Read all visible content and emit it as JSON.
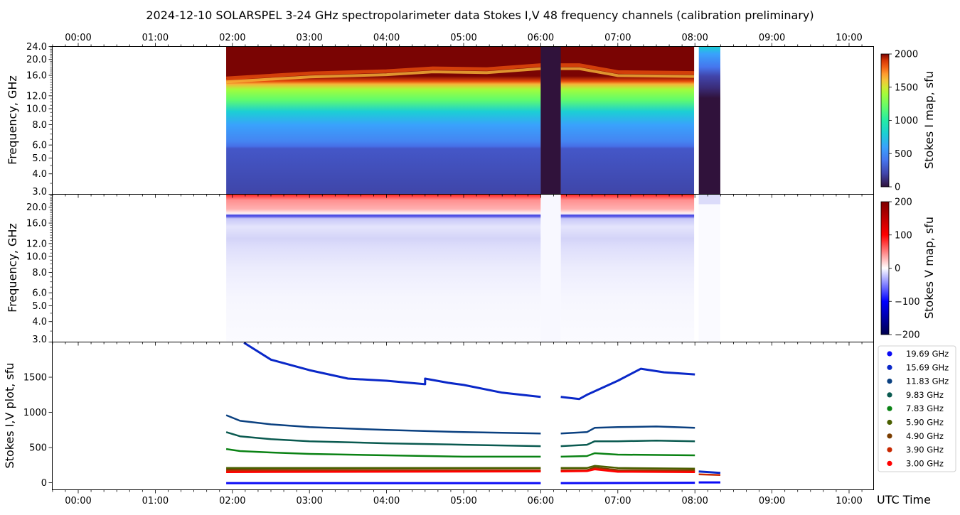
{
  "title": "2024-12-10  SOLARSPEL  3-24 GHz spectropolarimeter data   Stokes I,V   48 frequency channels   (calibration preliminary)",
  "x_axis": {
    "label": "UTC Time",
    "range_hours": [
      -0.33,
      10.33
    ],
    "ticks": [
      {
        "h": 0,
        "label": "00:00"
      },
      {
        "h": 1,
        "label": "01:00"
      },
      {
        "h": 2,
        "label": "02:00"
      },
      {
        "h": 3,
        "label": "03:00"
      },
      {
        "h": 4,
        "label": "04:00"
      },
      {
        "h": 5,
        "label": "05:00"
      },
      {
        "h": 6,
        "label": "06:00"
      },
      {
        "h": 7,
        "label": "07:00"
      },
      {
        "h": 8,
        "label": "08:00"
      },
      {
        "h": 9,
        "label": "09:00"
      },
      {
        "h": 10,
        "label": "10:00"
      }
    ]
  },
  "chart_data": [
    {
      "type": "heatmap",
      "name": "stokes-i-map",
      "ylabel": "Frequency, GHz",
      "yscale": "log",
      "ylim": [
        3.0,
        24.0
      ],
      "yticks_panel1": [
        "24.0",
        "20.0",
        "16.0",
        "12.0",
        "10.0",
        "8.0",
        "6.0",
        "5.0",
        "4.0",
        "3.0"
      ],
      "ytick_values_panel1": [
        24,
        20,
        16,
        12,
        10,
        8,
        6,
        5,
        4,
        3
      ],
      "colorbar": {
        "label": "Stokes I map, sfu",
        "range": [
          0,
          2000
        ],
        "ticks": [
          "0",
          "500",
          "1000",
          "1500",
          "2000"
        ],
        "tick_values": [
          0,
          500,
          1000,
          1500,
          2000
        ],
        "colormap": "turbo"
      },
      "data_segments_hours": [
        [
          1.92,
          6.0
        ],
        [
          6.0,
          6.26
        ],
        [
          6.26,
          7.99
        ],
        [
          8.05,
          8.33
        ]
      ],
      "segment_notes": [
        "quiet-sun spectrum",
        "gap / low values",
        "quiet-sun spectrum",
        "low values"
      ],
      "saturation_boundary_ghz": [
        {
          "h": 1.92,
          "f": 15.2
        },
        {
          "h": 3.0,
          "f": 16.3
        },
        {
          "h": 4.0,
          "f": 16.8
        },
        {
          "h": 4.6,
          "f": 17.5
        },
        {
          "h": 5.3,
          "f": 17.3
        },
        {
          "h": 6.0,
          "f": 18.3
        },
        {
          "h": 6.5,
          "f": 18.3
        },
        {
          "h": 7.0,
          "f": 16.6
        },
        {
          "h": 8.0,
          "f": 16.4
        }
      ]
    },
    {
      "type": "heatmap",
      "name": "stokes-v-map",
      "ylabel": "Frequency, GHz",
      "yscale": "log",
      "ylim": [
        3.0,
        24.0
      ],
      "yticks": [
        "20.0",
        "16.0",
        "12.0",
        "10.0",
        "8.0",
        "6.0",
        "5.0",
        "4.0",
        "3.0"
      ],
      "ytick_values": [
        20,
        16,
        12,
        10,
        8,
        6,
        5,
        4,
        3
      ],
      "colorbar": {
        "label": "Stokes V map, sfu",
        "range": [
          -200,
          200
        ],
        "ticks": [
          "−200",
          "−100",
          "0",
          "100",
          "200"
        ],
        "tick_values": [
          -200,
          -100,
          0,
          100,
          200
        ],
        "colormap": "seismic"
      },
      "bands": [
        {
          "f_low": 21.5,
          "f_high": 24.0,
          "v": 160
        },
        {
          "f_low": 19.0,
          "f_high": 21.5,
          "v": 70
        },
        {
          "f_low": 18.3,
          "f_high": 18.9,
          "v": -120
        },
        {
          "f_low": 12.0,
          "f_high": 14.0,
          "v": -40
        },
        {
          "f_low": 5.0,
          "f_high": 12.0,
          "v": -18
        }
      ]
    },
    {
      "type": "line",
      "name": "stokes-iv-plot",
      "ylabel": "Stokes I,V plot, sfu",
      "ylim": [
        -100,
        2000
      ],
      "yticks": [
        "0",
        "500",
        "1000",
        "1500"
      ],
      "ytick_values": [
        0,
        500,
        1000,
        1500
      ],
      "legend_position": "right",
      "series": [
        {
          "name": "19.69 GHz",
          "color": "#0a0af5",
          "x": [
            1.92,
            6.0,
            6.26,
            8.0,
            8.05,
            8.33
          ],
          "y": [
            -5,
            -5,
            -5,
            0,
            5,
            5
          ]
        },
        {
          "name": "15.69 GHz",
          "color": "#0a28c8",
          "x": [
            2.15,
            2.5,
            3.0,
            3.5,
            4.0,
            4.5,
            4.5,
            4.8,
            5.0,
            5.5,
            6.0,
            6.26,
            6.5,
            6.6,
            7.0,
            7.3,
            7.6,
            8.0,
            8.05,
            8.33
          ],
          "y": [
            1990,
            1750,
            1600,
            1480,
            1450,
            1400,
            1480,
            1420,
            1390,
            1280,
            1220,
            1220,
            1190,
            1250,
            1450,
            1620,
            1570,
            1540,
            160,
            140
          ]
        },
        {
          "name": "11.83 GHz",
          "color": "#0a4080",
          "x": [
            1.92,
            2.1,
            2.5,
            3.0,
            4.0,
            5.0,
            6.0,
            6.26,
            6.6,
            6.7,
            7.0,
            7.5,
            8.0
          ],
          "y": [
            960,
            880,
            830,
            790,
            750,
            720,
            700,
            700,
            720,
            780,
            790,
            800,
            780
          ]
        },
        {
          "name": "9.83 GHz",
          "color": "#0a5a50",
          "x": [
            1.92,
            2.1,
            2.5,
            3.0,
            4.0,
            5.0,
            6.0,
            6.26,
            6.6,
            6.7,
            7.0,
            7.5,
            8.0
          ],
          "y": [
            720,
            660,
            620,
            590,
            560,
            540,
            520,
            520,
            540,
            590,
            590,
            600,
            590
          ]
        },
        {
          "name": "7.83 GHz",
          "color": "#0a8214",
          "x": [
            1.92,
            2.1,
            2.5,
            3.0,
            4.0,
            5.0,
            6.0,
            6.26,
            6.6,
            6.7,
            7.0,
            8.0
          ],
          "y": [
            480,
            450,
            430,
            410,
            390,
            370,
            370,
            370,
            380,
            420,
            400,
            390
          ]
        },
        {
          "name": "5.90 GHz",
          "color": "#4a5f00",
          "x": [
            1.92,
            6.0,
            6.26,
            6.6,
            6.7,
            7.0,
            8.0
          ],
          "y": [
            210,
            210,
            210,
            210,
            240,
            210,
            200
          ]
        },
        {
          "name": "4.90 GHz",
          "color": "#7a3d00",
          "x": [
            1.92,
            6.0,
            6.26,
            6.6,
            6.7,
            7.0,
            8.0
          ],
          "y": [
            185,
            180,
            180,
            180,
            215,
            180,
            175
          ]
        },
        {
          "name": "3.90 GHz",
          "color": "#c82800",
          "x": [
            1.92,
            6.0,
            6.26,
            6.6,
            6.7,
            7.0,
            8.0,
            8.05,
            8.33
          ],
          "y": [
            165,
            170,
            170,
            170,
            200,
            165,
            160,
            120,
            110
          ]
        },
        {
          "name": "3.00 GHz",
          "color": "#ff0000",
          "x": [
            1.92,
            6.0,
            6.26,
            6.6,
            6.7,
            7.0,
            8.0
          ],
          "y": [
            150,
            160,
            160,
            165,
            190,
            155,
            150
          ]
        }
      ]
    }
  ]
}
